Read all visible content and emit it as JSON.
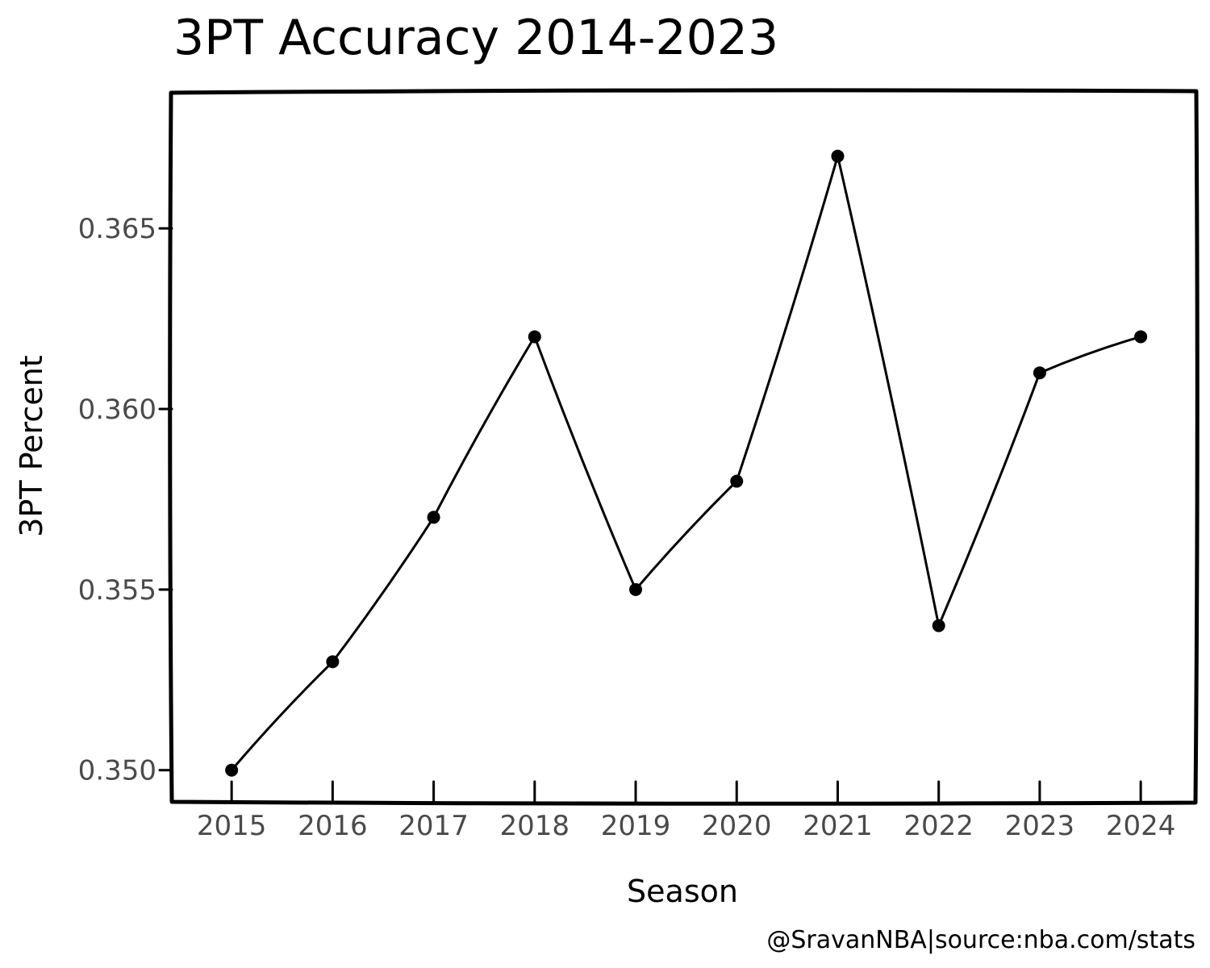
{
  "chart_data": {
    "type": "line",
    "title": "3PT Accuracy 2014-2023",
    "xlabel": "Season",
    "ylabel": "3PT Percent",
    "x": [
      2015,
      2016,
      2017,
      2018,
      2019,
      2020,
      2021,
      2022,
      2023,
      2024
    ],
    "x_tick_labels": [
      "2015",
      "2016",
      "2017",
      "2018",
      "2019",
      "2020",
      "2021",
      "2022",
      "2023",
      "2024"
    ],
    "series": [
      {
        "values": [
          0.35,
          0.353,
          0.357,
          0.362,
          0.355,
          0.358,
          0.367,
          0.354,
          0.361,
          0.362
        ]
      }
    ],
    "y_ticks": [
      0.35,
      0.355,
      0.36,
      0.365
    ],
    "y_tick_labels": [
      "0.350",
      "0.355",
      "0.360",
      "0.365"
    ],
    "xlim": [
      2014.4,
      2024.55
    ],
    "ylim": [
      0.3491,
      0.3688
    ],
    "grid": false,
    "legend": "none",
    "style": "xkcd",
    "line_color": "#000000",
    "tick_label_color": "#4a4a4a",
    "credit": "@SravanNBA|source:nba.com/stats"
  }
}
